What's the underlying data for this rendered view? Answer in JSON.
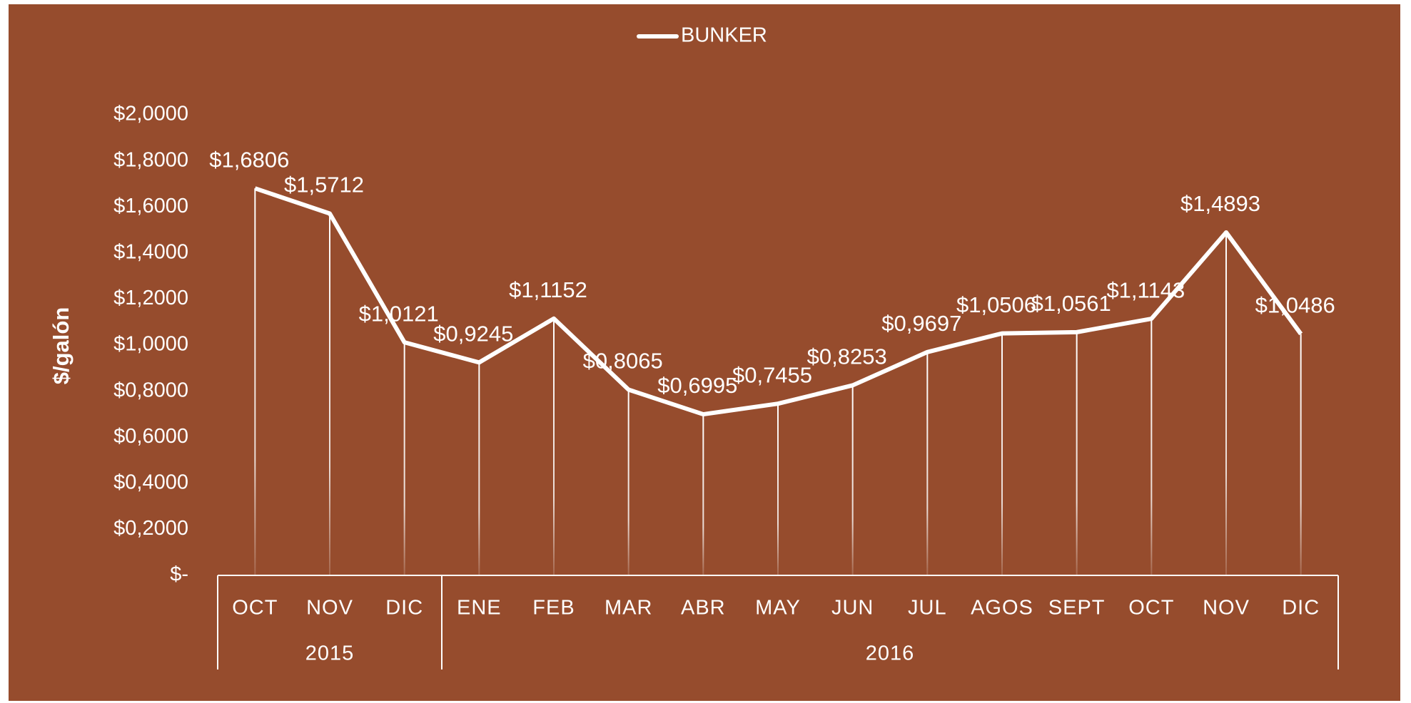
{
  "chart_data": {
    "type": "line",
    "legend": "top",
    "y_axis_label": "$/galón",
    "category_groups": [
      {
        "label": "2015",
        "categories": [
          "OCT",
          "NOV",
          "DIC"
        ]
      },
      {
        "label": "2016",
        "categories": [
          "ENE",
          "FEB",
          "MAR",
          "ABR",
          "MAY",
          "JUN",
          "JUL",
          "AGOS",
          "SEPT",
          "OCT",
          "NOV",
          "DIC"
        ]
      }
    ],
    "series": [
      {
        "name": "BUNKER",
        "color": "#ffffff",
        "values": [
          1.6806,
          1.5712,
          1.0121,
          0.9245,
          1.1152,
          0.8065,
          0.6995,
          0.7455,
          0.8253,
          0.9697,
          1.0506,
          1.0561,
          1.1143,
          1.4893,
          1.0486
        ],
        "value_labels": [
          "$1,6806",
          "$1,5712",
          "$1,0121",
          "$0,9245",
          "$1,1152",
          "$0,8065",
          "$0,6995",
          "$0,7455",
          "$0,8253",
          "$0,9697",
          "$1,0506",
          "$1,0561",
          "$1,1143",
          "$1,4893",
          "$1,0486"
        ]
      }
    ],
    "ylim": [
      0,
      2
    ],
    "yticks": [
      {
        "value": 0,
        "label": "$-"
      },
      {
        "value": 0.2,
        "label": "$0,2000"
      },
      {
        "value": 0.4,
        "label": "$0,4000"
      },
      {
        "value": 0.6,
        "label": "$0,6000"
      },
      {
        "value": 0.8,
        "label": "$0,8000"
      },
      {
        "value": 1.0,
        "label": "$1,0000"
      },
      {
        "value": 1.2,
        "label": "$1,2000"
      },
      {
        "value": 1.4,
        "label": "$1,4000"
      },
      {
        "value": 1.6,
        "label": "$1,6000"
      },
      {
        "value": 1.8,
        "label": "$1,8000"
      },
      {
        "value": 2.0,
        "label": "$2,0000"
      }
    ],
    "grid": false,
    "drop_lines": true
  }
}
